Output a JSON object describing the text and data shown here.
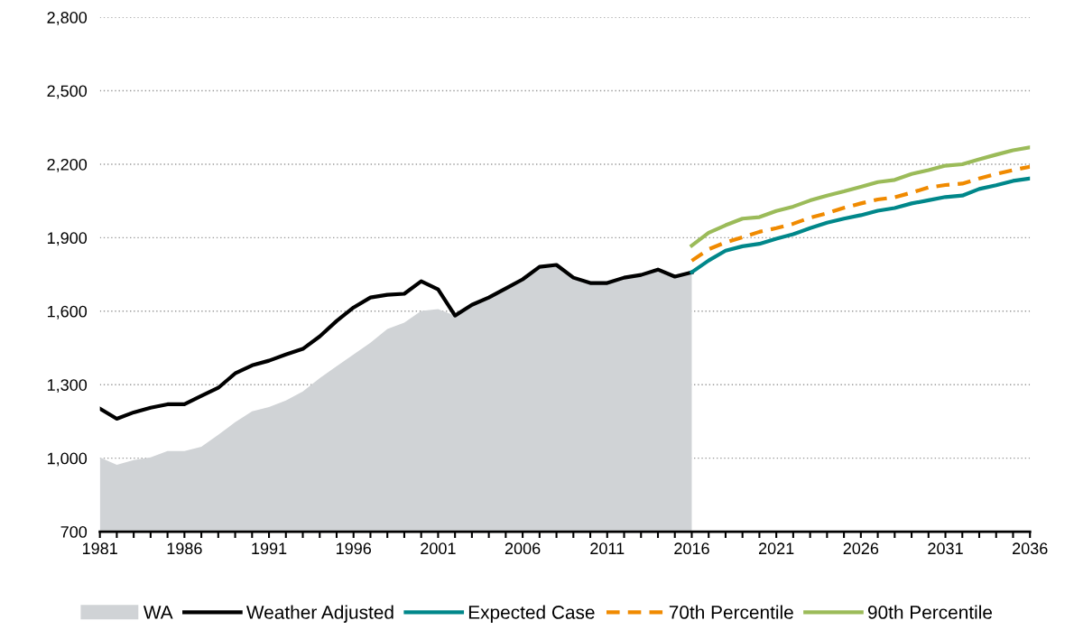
{
  "chart_data": {
    "type": "line",
    "x": [
      1981,
      1982,
      1983,
      1984,
      1985,
      1986,
      1987,
      1988,
      1989,
      1990,
      1991,
      1992,
      1993,
      1994,
      1995,
      1996,
      1997,
      1998,
      1999,
      2000,
      2001,
      2002,
      2003,
      2004,
      2005,
      2006,
      2007,
      2008,
      2009,
      2010,
      2011,
      2012,
      2013,
      2014,
      2015,
      2016
    ],
    "series": [
      {
        "name": "WA",
        "type": "area",
        "color": "#d0d3d6",
        "values": [
          1003,
          973,
          992,
          1003,
          1029,
          1029,
          1047,
          1095,
          1147,
          1191,
          1209,
          1235,
          1272,
          1327,
          1375,
          1423,
          1471,
          1527,
          1553,
          1601,
          1608,
          1582,
          1626,
          1656,
          1693,
          1730,
          1781,
          1789,
          1737,
          1715,
          1715,
          1737,
          1748,
          1770,
          1741,
          1759
        ]
      },
      {
        "name": "Weather Adjusted",
        "color": "#000000",
        "values": [
          1202,
          1161,
          1187,
          1206,
          1220,
          1220,
          1254,
          1287,
          1346,
          1379,
          1398,
          1423,
          1446,
          1497,
          1560,
          1615,
          1656,
          1667,
          1671,
          1722,
          1689,
          1582,
          1626,
          1656,
          1693,
          1730,
          1781,
          1789,
          1737,
          1715,
          1715,
          1737,
          1748,
          1770,
          1741,
          1759
        ]
      },
      {
        "name": "Expected Case",
        "color": "#00878a",
        "x": [
          2016,
          2017,
          2018,
          2019,
          2020,
          2021,
          2022,
          2023,
          2024,
          2025,
          2026,
          2027,
          2028,
          2029,
          2030,
          2031,
          2032,
          2033,
          2034,
          2035,
          2036
        ],
        "values": [
          1759,
          1807,
          1847,
          1865,
          1875,
          1896,
          1914,
          1939,
          1961,
          1978,
          1992,
          2010,
          2021,
          2040,
          2053,
          2066,
          2072,
          2099,
          2114,
          2132,
          2142
        ]
      },
      {
        "name": "70th Percentile",
        "line_style": "dashed",
        "color": "#f08a00",
        "x": [
          2016,
          2017,
          2018,
          2019,
          2020,
          2021,
          2022,
          2023,
          2024,
          2025,
          2026,
          2027,
          2028,
          2029,
          2030,
          2031,
          2032,
          2033,
          2034,
          2035,
          2036
        ],
        "values": [
          1806,
          1853,
          1881,
          1902,
          1924,
          1939,
          1957,
          1982,
          2000,
          2022,
          2040,
          2056,
          2065,
          2084,
          2105,
          2115,
          2121,
          2142,
          2160,
          2176,
          2190
        ]
      },
      {
        "name": "90th Percentile",
        "color": "#9bbb59",
        "x": [
          2016,
          2017,
          2018,
          2019,
          2020,
          2021,
          2022,
          2023,
          2024,
          2025,
          2026,
          2027,
          2028,
          2029,
          2030,
          2031,
          2032,
          2033,
          2034,
          2035,
          2036
        ],
        "values": [
          1868,
          1920,
          1951,
          1978,
          1984,
          2009,
          2027,
          2052,
          2072,
          2089,
          2108,
          2127,
          2136,
          2160,
          2176,
          2194,
          2200,
          2220,
          2239,
          2257,
          2269
        ]
      }
    ],
    "xlim": [
      1981,
      2036
    ],
    "xticks": [
      1981,
      1986,
      1991,
      1996,
      2001,
      2006,
      2011,
      2016,
      2021,
      2026,
      2031,
      2036
    ],
    "ylim": [
      700,
      2800
    ],
    "yticks": [
      700,
      {
        "value": 1000,
        "label": "1,000"
      },
      {
        "value": 1300,
        "label": "1,300"
      },
      {
        "value": 1600,
        "label": "1,600"
      },
      {
        "value": 1900,
        "label": "1,900"
      },
      {
        "value": 2200,
        "label": "2,200"
      },
      {
        "value": 2500,
        "label": "2,500"
      },
      {
        "value": 2800,
        "label": "2,800"
      }
    ],
    "grid": "y",
    "legend": "bottom"
  }
}
